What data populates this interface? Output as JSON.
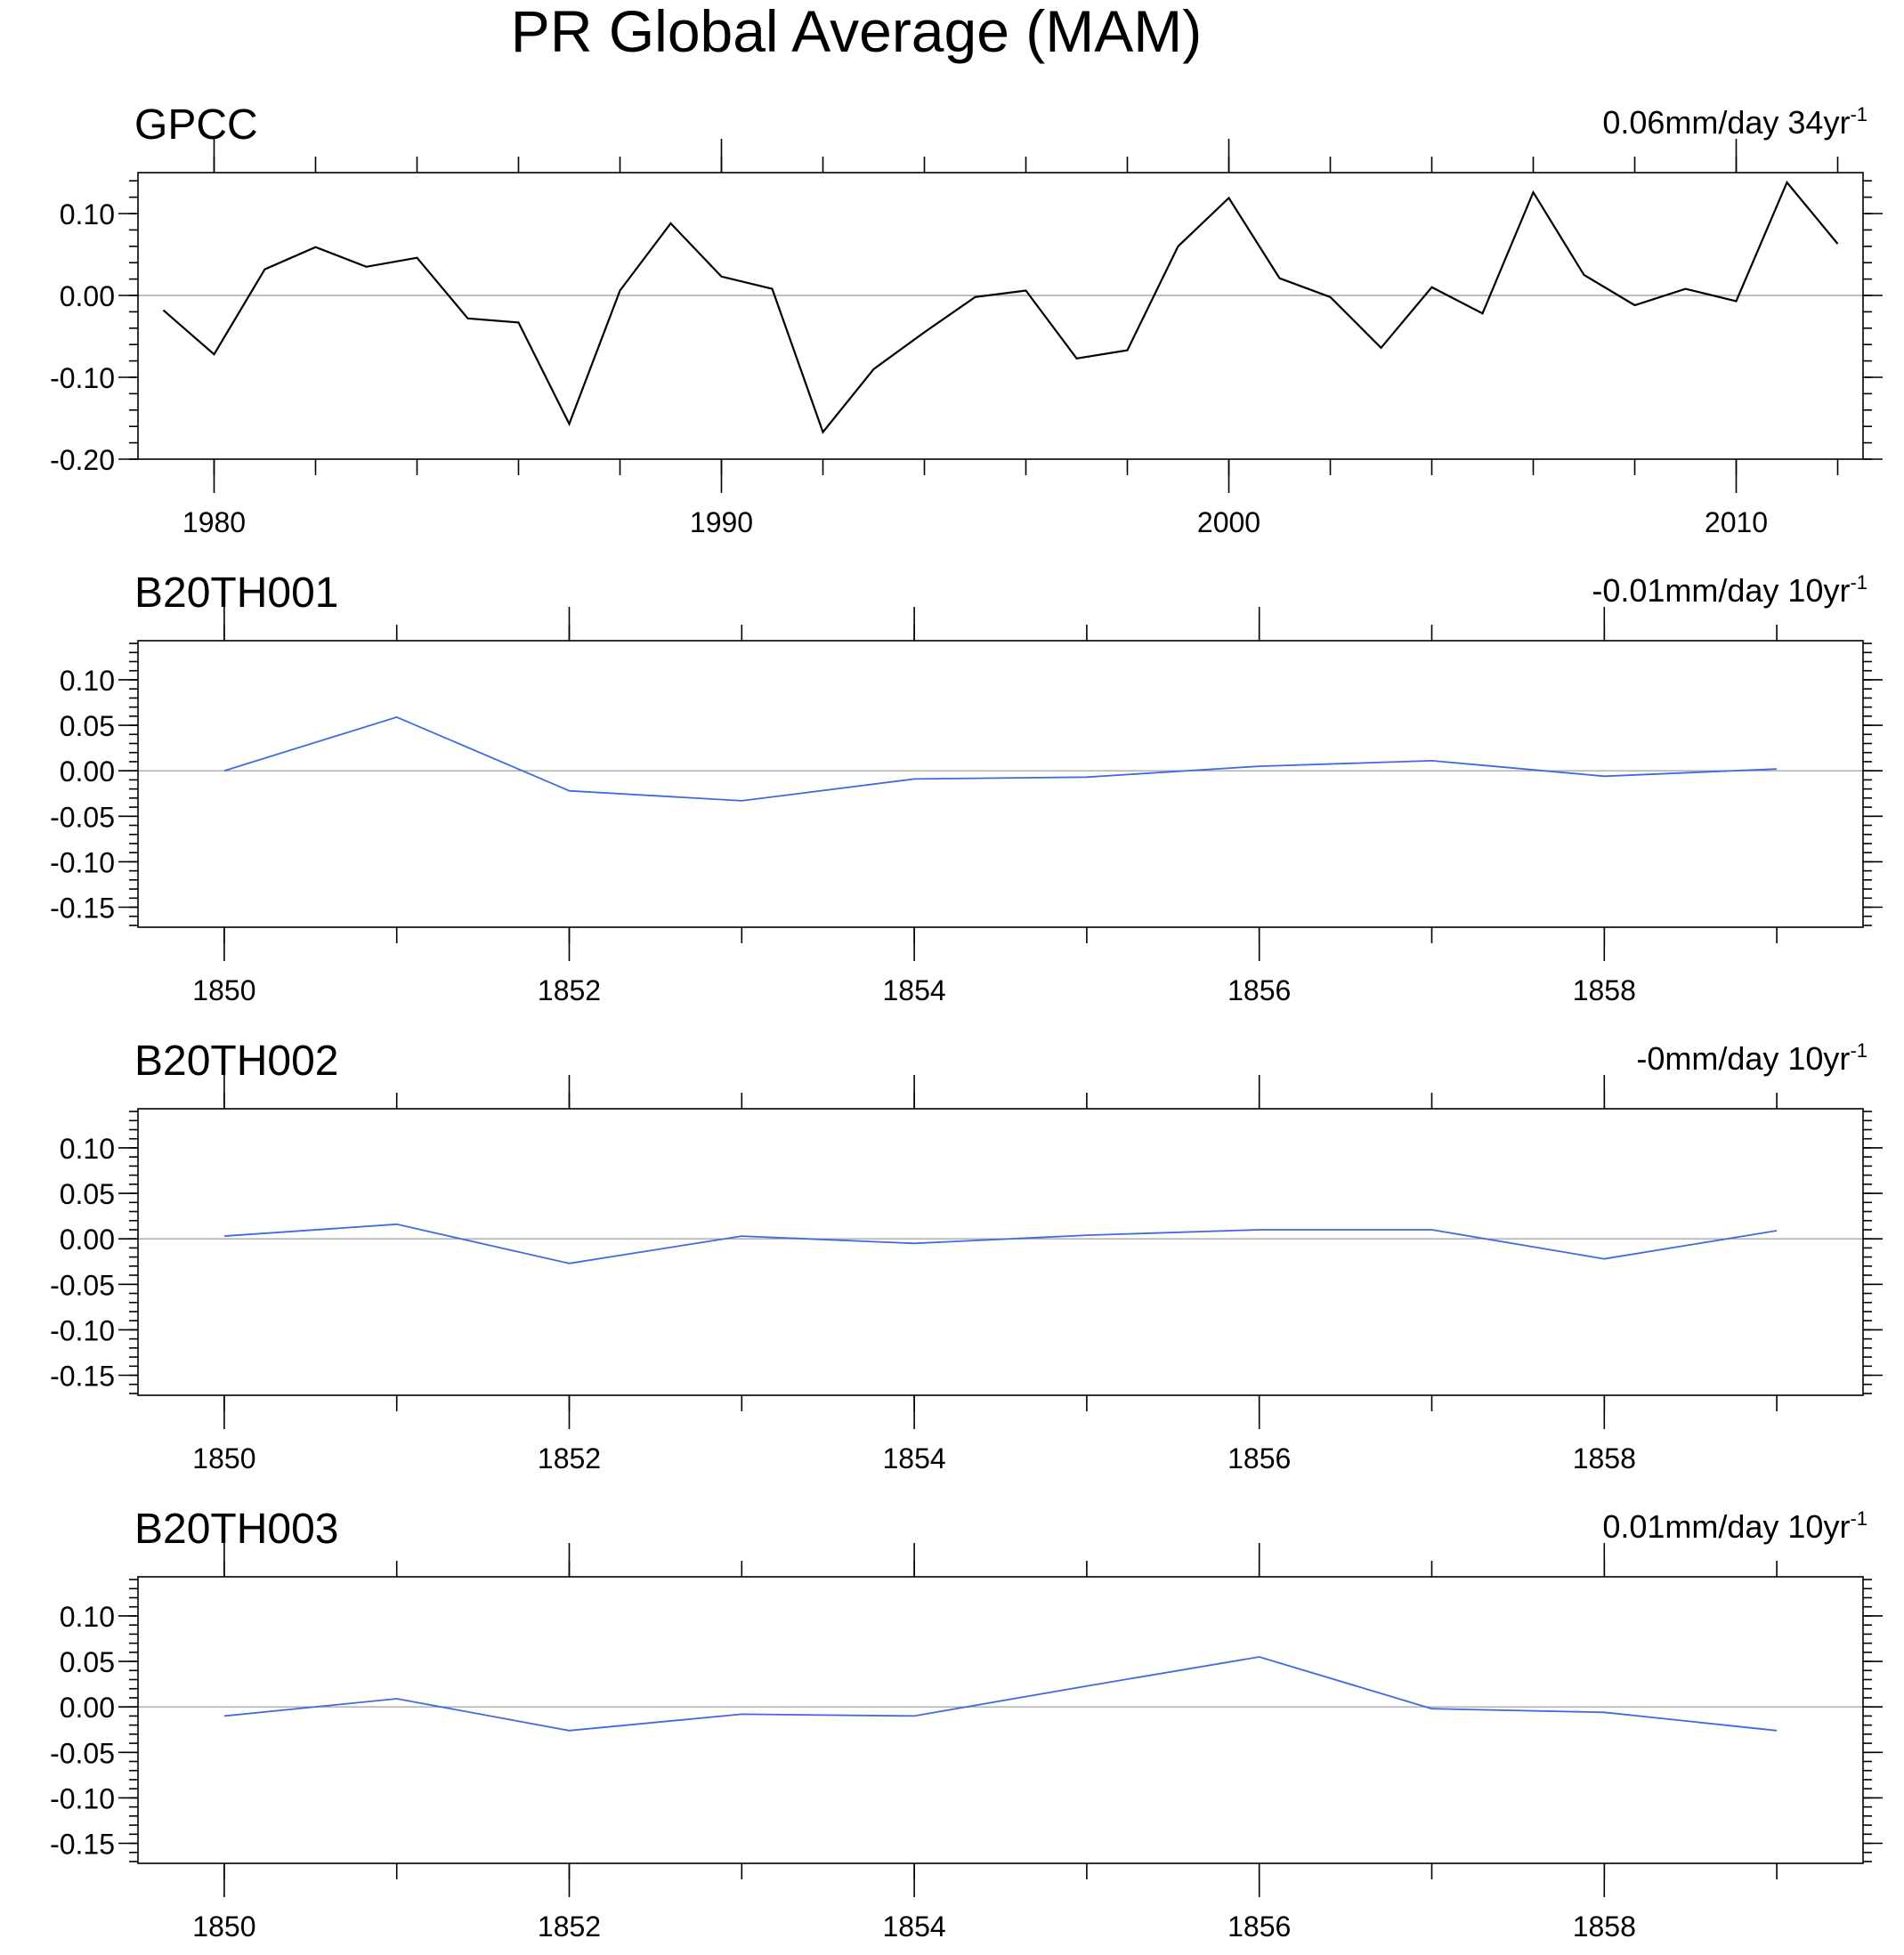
{
  "figure_title": "PR Global Average (MAM)",
  "chart_data": [
    {
      "type": "line",
      "title": "GPCC",
      "trend": {
        "text": "0.06mm/day 34yr",
        "exponent": "-1"
      },
      "line_color": "#000000",
      "zero_line_color": "#a8a8a8",
      "xlim": [
        1978.5,
        2012.5
      ],
      "ylim": [
        -0.2,
        0.15
      ],
      "yticks": [
        0.1,
        0.0,
        -0.1,
        -0.2
      ],
      "ytick_labels": [
        "0.10",
        "0.00",
        "-0.10",
        "-0.20"
      ],
      "yminor_step": 0.02,
      "xticks": [
        1980,
        1990,
        2000,
        2010
      ],
      "xtick_labels": [
        "1980",
        "1990",
        "2000",
        "2010"
      ],
      "xminor_step": 2,
      "x": [
        1979,
        1980,
        1981,
        1982,
        1983,
        1984,
        1985,
        1986,
        1987,
        1988,
        1989,
        1990,
        1991,
        1992,
        1993,
        1994,
        1995,
        1996,
        1997,
        1998,
        1999,
        2000,
        2001,
        2002,
        2003,
        2004,
        2005,
        2006,
        2007,
        2008,
        2009,
        2010,
        2011,
        2012
      ],
      "series": [
        {
          "name": "GPCC",
          "values": [
            -0.018,
            -0.072,
            0.032,
            0.059,
            0.035,
            0.046,
            -0.028,
            -0.033,
            -0.157,
            0.006,
            0.088,
            0.023,
            0.008,
            -0.167,
            -0.09,
            -0.045,
            -0.002,
            0.006,
            -0.077,
            -0.067,
            0.06,
            0.119,
            0.021,
            -0.002,
            -0.064,
            0.01,
            -0.022,
            0.126,
            0.025,
            -0.012,
            0.008,
            -0.007,
            0.138,
            0.063
          ]
        }
      ]
    },
    {
      "type": "line",
      "title": "B20TH001",
      "trend": {
        "text": "-0.01mm/day 10yr",
        "exponent": "-1"
      },
      "line_color": "#4169e1",
      "zero_line_color": "#a8a8a8",
      "xlim": [
        1849.5,
        1859.5
      ],
      "ylim": [
        -0.172,
        0.143
      ],
      "yticks": [
        0.1,
        0.05,
        0.0,
        -0.05,
        -0.1,
        -0.15
      ],
      "ytick_labels": [
        "0.10",
        "0.05",
        "0.00",
        "-0.05",
        "-0.10",
        "-0.15"
      ],
      "yminor_step": 0.01,
      "xticks": [
        1850,
        1852,
        1854,
        1856,
        1858
      ],
      "xtick_labels": [
        "1850",
        "1852",
        "1854",
        "1856",
        "1858"
      ],
      "xminor_step": 1,
      "x": [
        1850,
        1851,
        1852,
        1853,
        1854,
        1855,
        1856,
        1857,
        1858,
        1859
      ],
      "series": [
        {
          "name": "B20TH001",
          "values": [
            0.0,
            0.059,
            -0.022,
            -0.033,
            -0.009,
            -0.007,
            0.005,
            0.011,
            -0.006,
            0.002
          ]
        }
      ]
    },
    {
      "type": "line",
      "title": "B20TH002",
      "trend": {
        "text": "-0mm/day 10yr",
        "exponent": "-1"
      },
      "line_color": "#4169e1",
      "zero_line_color": "#a8a8a8",
      "xlim": [
        1849.5,
        1859.5
      ],
      "ylim": [
        -0.172,
        0.143
      ],
      "yticks": [
        0.1,
        0.05,
        0.0,
        -0.05,
        -0.1,
        -0.15
      ],
      "ytick_labels": [
        "0.10",
        "0.05",
        "0.00",
        "-0.05",
        "-0.10",
        "-0.15"
      ],
      "yminor_step": 0.01,
      "xticks": [
        1850,
        1852,
        1854,
        1856,
        1858
      ],
      "xtick_labels": [
        "1850",
        "1852",
        "1854",
        "1856",
        "1858"
      ],
      "xminor_step": 1,
      "x": [
        1850,
        1851,
        1852,
        1853,
        1854,
        1855,
        1856,
        1857,
        1858,
        1859
      ],
      "series": [
        {
          "name": "B20TH002",
          "values": [
            0.003,
            0.016,
            -0.027,
            0.003,
            -0.005,
            0.004,
            0.01,
            0.01,
            -0.022,
            0.009
          ]
        }
      ]
    },
    {
      "type": "line",
      "title": "B20TH003",
      "trend": {
        "text": "0.01mm/day 10yr",
        "exponent": "-1"
      },
      "line_color": "#4169e1",
      "zero_line_color": "#a8a8a8",
      "xlim": [
        1849.5,
        1859.5
      ],
      "ylim": [
        -0.172,
        0.143
      ],
      "yticks": [
        0.1,
        0.05,
        0.0,
        -0.05,
        -0.1,
        -0.15
      ],
      "ytick_labels": [
        "0.10",
        "0.05",
        "0.00",
        "-0.05",
        "-0.10",
        "-0.15"
      ],
      "yminor_step": 0.01,
      "xticks": [
        1850,
        1852,
        1854,
        1856,
        1858
      ],
      "xtick_labels": [
        "1850",
        "1852",
        "1854",
        "1856",
        "1858"
      ],
      "xminor_step": 1,
      "x": [
        1850,
        1851,
        1852,
        1853,
        1854,
        1855,
        1856,
        1857,
        1858,
        1859
      ],
      "series": [
        {
          "name": "B20TH003",
          "values": [
            -0.01,
            0.009,
            -0.026,
            -0.008,
            -0.01,
            0.023,
            0.055,
            -0.002,
            -0.006,
            -0.026
          ]
        }
      ]
    }
  ]
}
